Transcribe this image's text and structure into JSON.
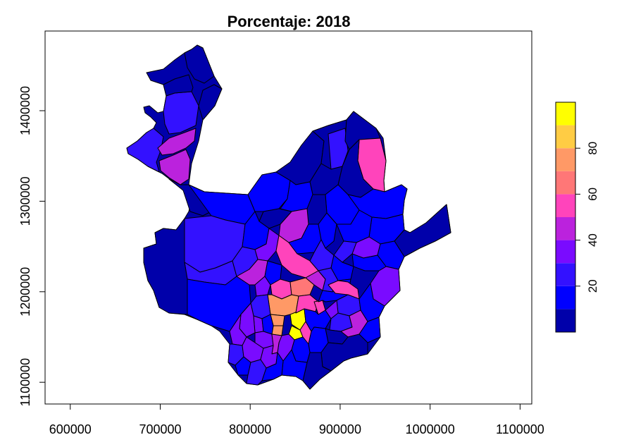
{
  "title": "Porcentaje: 2018",
  "x_axis": {
    "ticks": [
      "600000",
      "700000",
      "800000",
      "900000",
      "1000000",
      "1100000"
    ],
    "values": [
      600000,
      700000,
      800000,
      900000,
      1000000,
      1100000
    ],
    "range": [
      572000,
      1113000
    ]
  },
  "y_axis": {
    "ticks": [
      "1100000",
      "1200000",
      "1300000",
      "1400000"
    ],
    "values": [
      1100000,
      1200000,
      1300000,
      1400000
    ],
    "range": [
      1076000,
      1488000
    ]
  },
  "legend": {
    "breaks": [
      0,
      10,
      20,
      30,
      40,
      50,
      60,
      70,
      80,
      90,
      100
    ],
    "colors": [
      "#0000AA",
      "#0000FF",
      "#3311FF",
      "#7A0BFF",
      "#BB22DD",
      "#FF44BB",
      "#FF7777",
      "#FF9966",
      "#FFCC44",
      "#FFFF00"
    ],
    "tick_values": [
      20,
      40,
      60,
      80
    ],
    "tick_labels": [
      "20",
      "40",
      "60",
      "80"
    ]
  },
  "colors": {
    "outline": "#000000",
    "background": "#ffffff"
  }
}
